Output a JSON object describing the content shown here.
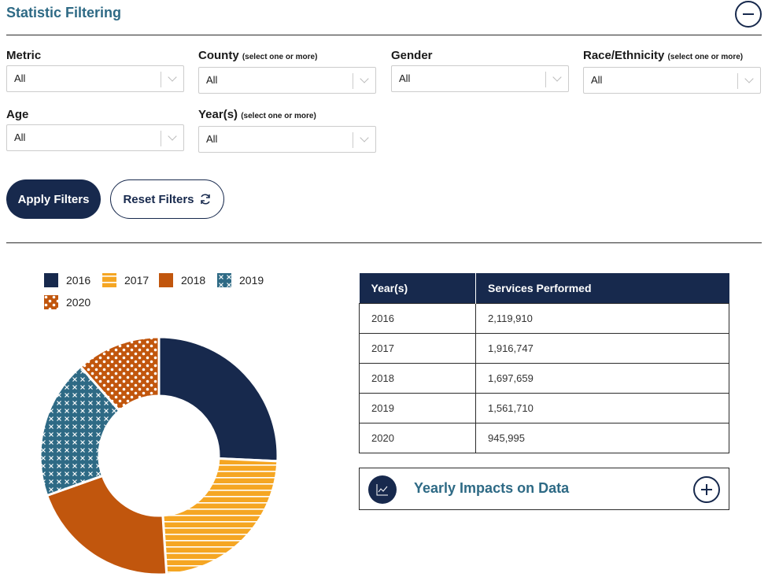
{
  "header": {
    "title": "Statistic Filtering"
  },
  "filters": {
    "metric": {
      "label": "Metric",
      "hint": "",
      "value": "All"
    },
    "county": {
      "label": "County",
      "hint": "(select one or more)",
      "value": "All"
    },
    "gender": {
      "label": "Gender",
      "hint": "",
      "value": "All"
    },
    "race": {
      "label": "Race/Ethnicity",
      "hint": "(select one or more)",
      "value": "All"
    },
    "age": {
      "label": "Age",
      "hint": "",
      "value": "All"
    },
    "years": {
      "label": "Year(s)",
      "hint": "(select one or more)",
      "value": "All"
    }
  },
  "buttons": {
    "apply": "Apply Filters",
    "reset": "Reset Filters"
  },
  "icons": {
    "collapse": "minus-circle-icon",
    "reset": "refresh-icon",
    "impact": "line-chart-icon",
    "expand": "plus-circle-icon",
    "select_chevron": "chevron-down-icon"
  },
  "colors": {
    "navy": "#17294d",
    "yellow": "#f5a623",
    "orange": "#c1560d",
    "teal": "#2e6a85"
  },
  "chart_data": {
    "type": "pie",
    "donut": true,
    "title": "",
    "categories": [
      "2016",
      "2017",
      "2018",
      "2019",
      "2020"
    ],
    "values": [
      2119910,
      1916747,
      1697659,
      1561710,
      945995
    ],
    "legend": [
      "2016",
      "2017",
      "2018",
      "2019",
      "2020"
    ],
    "legend_position": "top-left",
    "colors": [
      "#17294d",
      "#f5a623",
      "#c1560d",
      "#2e6a85",
      "#c1560d"
    ],
    "patterns": [
      "solid",
      "horizontal-stripes",
      "solid",
      "cross-hatch",
      "dots"
    ]
  },
  "table": {
    "headers": [
      "Year(s)",
      "Services Performed"
    ],
    "rows": [
      [
        "2016",
        "2,119,910"
      ],
      [
        "2017",
        "1,916,747"
      ],
      [
        "2018",
        "1,697,659"
      ],
      [
        "2019",
        "1,561,710"
      ],
      [
        "2020",
        "945,995"
      ]
    ]
  },
  "impact": {
    "title": "Yearly Impacts on Data"
  }
}
